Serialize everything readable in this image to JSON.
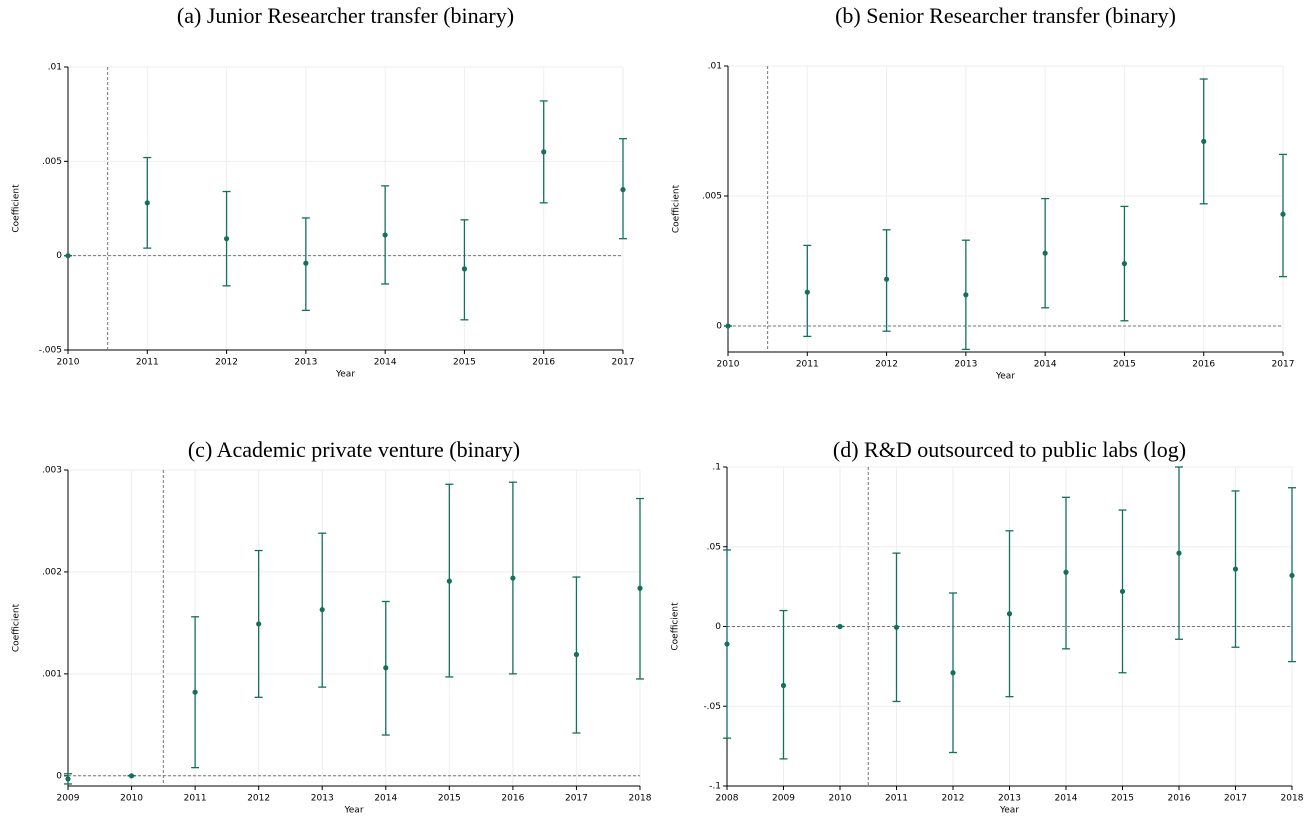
{
  "chart_data": [
    {
      "type": "errorbar",
      "title": "(a)  Junior Researcher transfer (binary)",
      "x_label": "Year",
      "y_label": "Coefficient",
      "color": "#14705c",
      "x": [
        2010,
        2011,
        2012,
        2013,
        2014,
        2015,
        2016,
        2017
      ],
      "values": [
        0,
        0.0028,
        0.0009,
        -0.0004,
        0.0011,
        -0.0007,
        0.0055,
        0.0035
      ],
      "lower": [
        0,
        0.0004,
        -0.0016,
        -0.0029,
        -0.0015,
        -0.0034,
        0.0028,
        0.0009
      ],
      "upper": [
        0,
        0.0052,
        0.0034,
        0.002,
        0.0037,
        0.0019,
        0.0082,
        0.0062
      ],
      "xlim": [
        2010,
        2017
      ],
      "xticks": [
        2010,
        2011,
        2012,
        2013,
        2014,
        2015,
        2016,
        2017
      ],
      "ylim": [
        -0.005,
        0.01
      ],
      "yticks": [
        {
          "value": -0.005,
          "label": "-.005"
        },
        0,
        {
          "value": 0.005,
          "label": ".005"
        },
        {
          "value": 0.01,
          "label": ".01"
        }
      ],
      "vline": 2010.5,
      "hline": 0,
      "grid": true
    },
    {
      "type": "errorbar",
      "title": "(b)  Senior Researcher transfer (binary)",
      "x_label": "Year",
      "y_label": "Coefficient",
      "color": "#14705c",
      "x": [
        2010,
        2011,
        2012,
        2013,
        2014,
        2015,
        2016,
        2017
      ],
      "values": [
        0,
        0.0013,
        0.0018,
        0.0012,
        0.0028,
        0.0024,
        0.0071,
        0.0043
      ],
      "lower": [
        0,
        -0.0004,
        -0.0002,
        -0.0009,
        0.0007,
        0.0002,
        0.0047,
        0.0019
      ],
      "upper": [
        0,
        0.0031,
        0.0037,
        0.0033,
        0.0049,
        0.0046,
        0.0095,
        0.0066
      ],
      "xlim": [
        2010,
        2017
      ],
      "xticks": [
        2010,
        2011,
        2012,
        2013,
        2014,
        2015,
        2016,
        2017
      ],
      "ylim": [
        -0.001,
        0.01
      ],
      "yticks": [
        0,
        {
          "value": 0.005,
          "label": ".005"
        },
        {
          "value": 0.01,
          "label": ".01"
        }
      ],
      "vline": 2010.5,
      "hline": 0,
      "grid": true
    },
    {
      "type": "errorbar",
      "title": "(c)  Academic private venture (binary)",
      "x_label": "Year",
      "y_label": "Coefficient",
      "color": "#14705c",
      "x": [
        2009,
        2010,
        2011,
        2012,
        2013,
        2014,
        2015,
        2016,
        2017,
        2018
      ],
      "values": [
        -3e-05,
        0,
        0.00082,
        0.00149,
        0.00163,
        0.00106,
        0.00191,
        0.00194,
        0.00119,
        0.00184
      ],
      "lower": [
        -8e-05,
        0,
        8e-05,
        0.00077,
        0.00087,
        0.0004,
        0.00097,
        0.001,
        0.00042,
        0.00095
      ],
      "upper": [
        2e-05,
        0,
        0.00156,
        0.00221,
        0.00238,
        0.00171,
        0.00286,
        0.00288,
        0.00195,
        0.00272
      ],
      "xlim": [
        2009,
        2018
      ],
      "xticks": [
        2009,
        2010,
        2011,
        2012,
        2013,
        2014,
        2015,
        2016,
        2017,
        2018
      ],
      "ylim": [
        -0.0001,
        0.003
      ],
      "yticks": [
        0,
        {
          "value": 0.001,
          "label": ".001"
        },
        {
          "value": 0.002,
          "label": ".002"
        },
        {
          "value": 0.003,
          "label": ".003"
        }
      ],
      "vline": 2010.5,
      "hline": 0,
      "grid": true
    },
    {
      "type": "errorbar",
      "title": "(d)  R&D outsourced to public labs (log)",
      "x_label": "Year",
      "y_label": "Coefficient",
      "color": "#14705c",
      "x": [
        2008,
        2009,
        2010,
        2011,
        2012,
        2013,
        2014,
        2015,
        2016,
        2017,
        2018
      ],
      "values": [
        -0.011,
        -0.037,
        0,
        -0.0005,
        -0.029,
        0.008,
        0.034,
        0.022,
        0.046,
        0.036,
        0.032
      ],
      "lower": [
        -0.07,
        -0.083,
        0,
        -0.047,
        -0.079,
        -0.044,
        -0.014,
        -0.029,
        -0.008,
        -0.013,
        -0.022
      ],
      "upper": [
        0.048,
        0.01,
        0,
        0.046,
        0.021,
        0.06,
        0.081,
        0.073,
        0.1,
        0.085,
        0.087
      ],
      "xlim": [
        2008,
        2018
      ],
      "xticks": [
        2008,
        2009,
        2010,
        2011,
        2012,
        2013,
        2014,
        2015,
        2016,
        2017,
        2018
      ],
      "ylim": [
        -0.1,
        0.1
      ],
      "yticks": [
        {
          "value": -0.1,
          "label": "-.1"
        },
        {
          "value": -0.05,
          "label": "-.05"
        },
        0,
        {
          "value": 0.05,
          "label": ".05"
        },
        {
          "value": 0.1,
          "label": ".1"
        }
      ],
      "vline": 2010.5,
      "hline": 0,
      "grid": true
    }
  ]
}
